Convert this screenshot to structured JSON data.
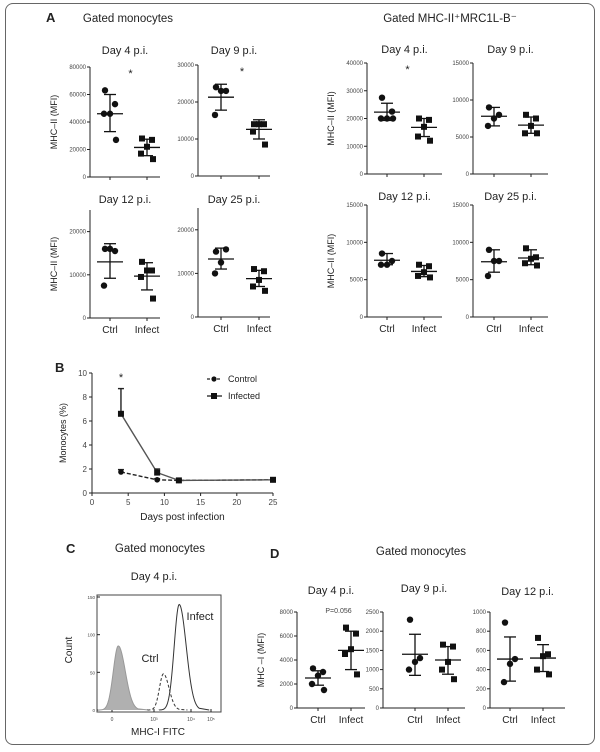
{
  "headers": {
    "panel_a_label": "A",
    "panel_a_left_title": "Gated monocytes",
    "panel_a_right_title": "Gated MHC-II⁺MRC1L-B⁻",
    "panel_b_label": "B",
    "panel_c_label": "C",
    "panel_c_title": "Gated monocytes",
    "panel_d_label": "D",
    "panel_d_title": "Gated monocytes"
  },
  "colors": {
    "ink": "#222222",
    "isotype_fill": "#b0b0b0",
    "frame": "#666666"
  },
  "chart_data": [
    {
      "type": "scatter",
      "panel": "A",
      "group": "Gated monocytes",
      "title": "Day 4 p.i.",
      "ylabel": "MHC–II (MFI)",
      "ylim": [
        0,
        80000
      ],
      "yticks": [
        "0",
        "20000",
        "40000",
        "60000",
        "80000"
      ],
      "categories": [
        "Ctrl",
        "Infect"
      ],
      "show_categories": false,
      "annotation": "*",
      "series": [
        {
          "category": "Ctrl",
          "marker": "circle",
          "values": [
            63000,
            53000,
            46000,
            46000,
            27000
          ],
          "mean": 46000,
          "error": [
            33000,
            60000
          ]
        },
        {
          "category": "Infect",
          "marker": "square",
          "values": [
            28000,
            27000,
            22000,
            17000,
            13000
          ],
          "mean": 21500,
          "error": [
            15500,
            27500
          ]
        }
      ]
    },
    {
      "type": "scatter",
      "panel": "A",
      "group": "Gated monocytes",
      "title": "Day 9 p.i.",
      "ylabel": "",
      "ylim": [
        0,
        30000
      ],
      "yticks": [
        "0",
        "10000",
        "20000",
        "30000"
      ],
      "categories": [
        "Ctrl",
        "Infect"
      ],
      "show_categories": false,
      "annotation": "*",
      "series": [
        {
          "category": "Ctrl",
          "marker": "circle",
          "values": [
            24000,
            23000,
            23000,
            16500
          ],
          "mean": 21300,
          "error": [
            17800,
            24800
          ]
        },
        {
          "category": "Infect",
          "marker": "square",
          "values": [
            14000,
            14000,
            14000,
            12000,
            8500
          ],
          "mean": 12600,
          "error": [
            10000,
            15200
          ]
        }
      ]
    },
    {
      "type": "scatter",
      "panel": "A",
      "group": "Gated monocytes",
      "title": "Day 12 p.i.",
      "ylabel": "MHC–II (MFI)",
      "ylim": [
        0,
        25000
      ],
      "yticks": [
        "0",
        "10000",
        "20000"
      ],
      "categories": [
        "Ctrl",
        "Infect"
      ],
      "show_categories": true,
      "annotation": "",
      "series": [
        {
          "category": "Ctrl",
          "marker": "circle",
          "values": [
            16000,
            15500,
            16000,
            7500
          ],
          "mean": 13000,
          "error": [
            9200,
            17200
          ]
        },
        {
          "category": "Infect",
          "marker": "square",
          "values": [
            13000,
            11000,
            11000,
            9500,
            4500
          ],
          "mean": 9700,
          "error": [
            6500,
            12800
          ]
        }
      ]
    },
    {
      "type": "scatter",
      "panel": "A",
      "group": "Gated monocytes",
      "title": "Day 25 p.i.",
      "ylabel": "",
      "ylim": [
        0,
        25000
      ],
      "yticks": [
        "0",
        "10000",
        "20000"
      ],
      "categories": [
        "Ctrl",
        "Infect"
      ],
      "show_categories": true,
      "annotation": "",
      "series": [
        {
          "category": "Ctrl",
          "marker": "circle",
          "values": [
            15000,
            15500,
            12500,
            10000
          ],
          "mean": 13300,
          "error": [
            11000,
            15800
          ]
        },
        {
          "category": "Infect",
          "marker": "square",
          "values": [
            11000,
            10500,
            8500,
            7000,
            6000
          ],
          "mean": 8800,
          "error": [
            7000,
            10700
          ]
        }
      ]
    },
    {
      "type": "scatter",
      "panel": "A",
      "group": "Gated MHC-II⁺MRC1L-B⁻",
      "title": "Day 4 p.i.",
      "ylabel": "MHC–II (MFI)",
      "ylim": [
        0,
        40000
      ],
      "yticks": [
        "0",
        "10000",
        "20000",
        "30000",
        "40000"
      ],
      "categories": [
        "Ctrl",
        "Infect"
      ],
      "show_categories": false,
      "annotation": "*",
      "series": [
        {
          "category": "Ctrl",
          "marker": "circle",
          "values": [
            27500,
            22500,
            20000,
            20000,
            20000
          ],
          "mean": 22300,
          "error": [
            19300,
            25500
          ]
        },
        {
          "category": "Infect",
          "marker": "square",
          "values": [
            20000,
            19500,
            17000,
            13500,
            12000
          ],
          "mean": 16800,
          "error": [
            13500,
            20000
          ]
        }
      ]
    },
    {
      "type": "scatter",
      "panel": "A",
      "group": "Gated MHC-II⁺MRC1L-B⁻",
      "title": "Day 9 p.i.",
      "ylabel": "",
      "ylim": [
        0,
        15000
      ],
      "yticks": [
        "0",
        "5000",
        "10000",
        "15000"
      ],
      "categories": [
        "Ctrl",
        "Infect"
      ],
      "show_categories": false,
      "annotation": "",
      "series": [
        {
          "category": "Ctrl",
          "marker": "circle",
          "values": [
            9000,
            8000,
            7500,
            6500
          ],
          "mean": 7800,
          "error": [
            6500,
            9000
          ]
        },
        {
          "category": "Infect",
          "marker": "square",
          "values": [
            8000,
            7500,
            6500,
            5500,
            5500
          ],
          "mean": 6600,
          "error": [
            5500,
            7700
          ]
        }
      ]
    },
    {
      "type": "scatter",
      "panel": "A",
      "group": "Gated MHC-II⁺MRC1L-B⁻",
      "title": "Day 12 p.i.",
      "ylabel": "MHC–II (MFI)",
      "ylim": [
        0,
        15000
      ],
      "yticks": [
        "0",
        "5000",
        "10000",
        "15000"
      ],
      "categories": [
        "Ctrl",
        "Infect"
      ],
      "show_categories": true,
      "annotation": "",
      "series": [
        {
          "category": "Ctrl",
          "marker": "circle",
          "values": [
            8500,
            7500,
            7000,
            7000
          ],
          "mean": 7600,
          "error": [
            7000,
            8500
          ]
        },
        {
          "category": "Infect",
          "marker": "square",
          "values": [
            7000,
            6800,
            6000,
            5500,
            5300
          ],
          "mean": 6100,
          "error": [
            5400,
            6900
          ]
        }
      ]
    },
    {
      "type": "scatter",
      "panel": "A",
      "group": "Gated MHC-II⁺MRC1L-B⁻",
      "title": "Day 25 p.i.",
      "ylabel": "",
      "ylim": [
        0,
        15000
      ],
      "yticks": [
        "0",
        "5000",
        "10000",
        "15000"
      ],
      "categories": [
        "Ctrl",
        "Infect"
      ],
      "show_categories": true,
      "annotation": "",
      "series": [
        {
          "category": "Ctrl",
          "marker": "circle",
          "values": [
            9000,
            7500,
            7500,
            5500
          ],
          "mean": 7400,
          "error": [
            6000,
            9000
          ]
        },
        {
          "category": "Infect",
          "marker": "square",
          "values": [
            9200,
            8000,
            7800,
            7200,
            6900
          ],
          "mean": 7900,
          "error": [
            7000,
            9000
          ]
        }
      ]
    },
    {
      "type": "line",
      "panel": "B",
      "title": "",
      "xlabel": "Days post infection",
      "ylabel": "Monocytes (%)",
      "xlim": [
        0,
        25
      ],
      "ylim": [
        0,
        10
      ],
      "xticks": [
        "0",
        "5",
        "10",
        "15",
        "20",
        "25"
      ],
      "yticks": [
        "0",
        "2",
        "4",
        "6",
        "8",
        "10"
      ],
      "legend": "top-right",
      "annotation": "*",
      "annotation_x": 4,
      "x": [
        4,
        9,
        12,
        25
      ],
      "series": [
        {
          "name": "Control",
          "marker": "circle",
          "dash": true,
          "values": [
            1.75,
            1.1,
            1.05,
            1.1
          ],
          "error_upper": [
            1.95,
            1.2,
            1.1,
            1.15
          ]
        },
        {
          "name": "Infected",
          "marker": "square",
          "dash": false,
          "values": [
            6.6,
            1.7,
            1.05,
            1.1
          ],
          "error_upper": [
            8.7,
            2.0,
            1.1,
            1.15
          ]
        }
      ]
    },
    {
      "type": "histogram",
      "panel": "C",
      "group": "Gated monocytes",
      "title": "Day 4 p.i.",
      "xlabel": "MHC-I FITC",
      "ylabel": "Count",
      "xticks": [
        "0",
        "10³",
        "10⁴",
        "10⁵"
      ],
      "yticks": [
        "0",
        "50",
        "100",
        "150"
      ],
      "ylim": [
        0,
        150
      ],
      "series": [
        {
          "name": "",
          "style": "filled-gray",
          "peak_value": 150,
          "peak_count": 85
        },
        {
          "name": "Ctrl",
          "style": "dashed",
          "peak_value": 1800,
          "peak_count": 48
        },
        {
          "name": "Infect",
          "style": "solid",
          "peak_value": 4800,
          "peak_count": 140
        }
      ]
    },
    {
      "type": "scatter",
      "panel": "D",
      "group": "Gated monocytes",
      "title": "Day 4 p.i.",
      "ylabel": "MHC –I (MFI)",
      "ylim": [
        0,
        8000
      ],
      "yticks": [
        "0",
        "2000",
        "4000",
        "6000",
        "8000"
      ],
      "categories": [
        "Ctrl",
        "Infect"
      ],
      "show_categories": true,
      "annotation": "P=0.056",
      "series": [
        {
          "category": "Ctrl",
          "marker": "circle",
          "values": [
            3300,
            3000,
            2700,
            2000,
            1500
          ],
          "mean": 2500,
          "error": [
            1900,
            3100
          ]
        },
        {
          "category": "Infect",
          "marker": "square",
          "values": [
            6700,
            6200,
            4900,
            4500,
            2800
          ],
          "mean": 4800,
          "error": [
            3200,
            6400
          ]
        }
      ]
    },
    {
      "type": "scatter",
      "panel": "D",
      "group": "Gated monocytes",
      "title": "Day 9 p.i.",
      "ylabel": "",
      "ylim": [
        0,
        2500
      ],
      "yticks": [
        "0",
        "500",
        "1000",
        "1500",
        "2000",
        "2500"
      ],
      "categories": [
        "Ctrl",
        "Infect"
      ],
      "show_categories": true,
      "annotation": "",
      "series": [
        {
          "category": "Ctrl",
          "marker": "circle",
          "values": [
            2300,
            1300,
            1200,
            1000
          ],
          "mean": 1400,
          "error": [
            850,
            1920
          ]
        },
        {
          "category": "Infect",
          "marker": "square",
          "values": [
            1650,
            1600,
            1200,
            1000,
            750
          ],
          "mean": 1250,
          "error": [
            880,
            1600
          ]
        }
      ]
    },
    {
      "type": "scatter",
      "panel": "D",
      "group": "Gated monocytes",
      "title": "Day 12 p.i.",
      "ylabel": "",
      "ylim": [
        0,
        1000
      ],
      "yticks": [
        "0",
        "200",
        "400",
        "600",
        "800",
        "1000"
      ],
      "categories": [
        "Ctrl",
        "Infect"
      ],
      "show_categories": true,
      "annotation": "",
      "series": [
        {
          "category": "Ctrl",
          "marker": "circle",
          "values": [
            890,
            510,
            460,
            270
          ],
          "mean": 510,
          "error": [
            280,
            740
          ]
        },
        {
          "category": "Infect",
          "marker": "square",
          "values": [
            730,
            560,
            540,
            400,
            350
          ],
          "mean": 520,
          "error": [
            380,
            660
          ]
        }
      ]
    }
  ]
}
